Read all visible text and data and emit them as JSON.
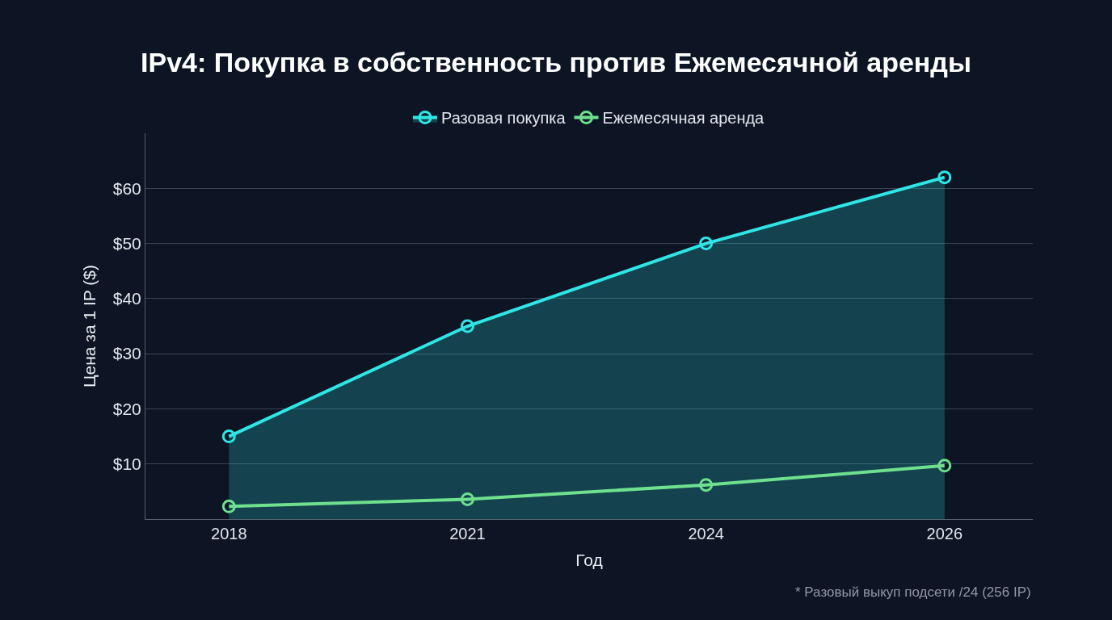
{
  "chart_data": {
    "type": "line",
    "title": "IPv4: Покупка в собственность против Ежемесячной аренды",
    "xlabel": "Год",
    "ylabel": "Цена за 1 IP ($)",
    "categories": [
      "2018",
      "2021",
      "2024",
      "2026"
    ],
    "series": [
      {
        "name": "Разовая покупка",
        "type": "area",
        "color": "#2ee6e6",
        "values": [
          15,
          35,
          50,
          62
        ]
      },
      {
        "name": "Ежемесячная аренда",
        "color": "#6ee08e",
        "values": [
          2.3,
          3.6,
          6.2,
          9.7
        ]
      }
    ],
    "ylim": [
      0,
      70
    ],
    "yticks": [
      {
        "value": 10,
        "label": "$10"
      },
      {
        "value": 20,
        "label": "$20"
      },
      {
        "value": 30,
        "label": "$30"
      },
      {
        "value": 40,
        "label": "$40"
      },
      {
        "value": 50,
        "label": "$50"
      },
      {
        "value": 60,
        "label": "$60"
      }
    ],
    "grid": "y",
    "legend": "top",
    "marker": "circle",
    "line_style": "solid",
    "annotations": [
      "* Разовый выкуп подсети /24 (256 IP)"
    ]
  }
}
